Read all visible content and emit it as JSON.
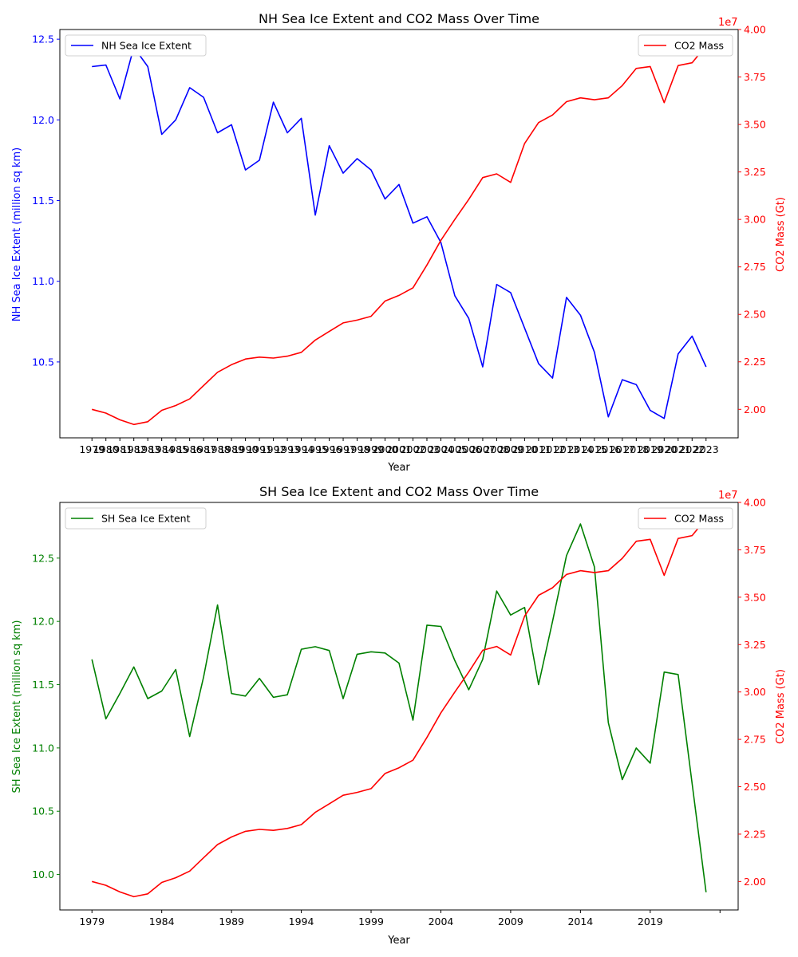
{
  "colors": {
    "nh": "#0000ff",
    "sh": "#008000",
    "co2": "#ff0000",
    "axis": "#000000",
    "background": "#ffffff"
  },
  "chart_data": [
    {
      "type": "line",
      "title": "NH Sea Ice Extent and CO2 Mass Over Time",
      "xlabel": "Year",
      "ylabel_left": "NH Sea Ice Extent (million sq km)",
      "ylabel_right": "CO2 Mass (Gt)",
      "right_offset_label": "1e7",
      "x": [
        1979,
        1980,
        1981,
        1982,
        1983,
        1984,
        1985,
        1986,
        1987,
        1988,
        1989,
        1990,
        1991,
        1992,
        1993,
        1994,
        1995,
        1996,
        1997,
        1998,
        1999,
        2000,
        2001,
        2002,
        2003,
        2004,
        2005,
        2006,
        2007,
        2008,
        2009,
        2010,
        2011,
        2012,
        2013,
        2014,
        2015,
        2016,
        2017,
        2018,
        2019,
        2020,
        2021,
        2022,
        2023
      ],
      "x_tick_labels": [
        "1979",
        "1980",
        "1981",
        "1982",
        "1983",
        "1984",
        "1985",
        "1986",
        "1987",
        "1988",
        "1989",
        "1990",
        "1991",
        "1992",
        "1993",
        "1994",
        "1995",
        "1996",
        "1997",
        "1998",
        "1999",
        "2000",
        "2001",
        "2002",
        "2003",
        "2004",
        "2005",
        "2006",
        "2007",
        "2008",
        "2009",
        "2010",
        "2011",
        "2012",
        "2013",
        "2014",
        "2015",
        "2016",
        "2017",
        "2018",
        "2019",
        "2020",
        "2021",
        "2022",
        "2023"
      ],
      "xlim": [
        1976.7,
        2025.3
      ],
      "ylim_left": [
        10.03,
        12.56
      ],
      "ylim_right": [
        18500000,
        40000000
      ],
      "y_ticks_left": [
        "10.5",
        "11.0",
        "11.5",
        "12.0",
        "12.5"
      ],
      "y_ticks_right": [
        "2.00",
        "2.25",
        "2.50",
        "2.75",
        "3.00",
        "3.25",
        "3.50",
        "3.75",
        "4.00"
      ],
      "grid": false,
      "legend_left": "top-left",
      "legend_right": "top-right",
      "series_left": {
        "name": "NH Sea Ice Extent",
        "axis": "left",
        "values": [
          12.33,
          12.34,
          12.13,
          12.45,
          12.33,
          11.91,
          12.0,
          12.2,
          12.14,
          11.92,
          11.97,
          11.69,
          11.75,
          12.11,
          11.92,
          12.01,
          11.41,
          11.84,
          11.67,
          11.76,
          11.69,
          11.51,
          11.6,
          11.36,
          11.4,
          11.24,
          10.91,
          10.77,
          10.47,
          10.98,
          10.93,
          10.71,
          10.49,
          10.4,
          10.9,
          10.79,
          10.56,
          10.16,
          10.39,
          10.36,
          10.2,
          10.15,
          10.55,
          10.66,
          10.47
        ]
      },
      "series_right": {
        "name": "CO2 Mass",
        "axis": "right",
        "values": [
          20000000,
          19800000,
          19450000,
          19200000,
          19350000,
          19950000,
          20200000,
          20550000,
          21250000,
          21950000,
          22350000,
          22650000,
          22750000,
          22700000,
          22800000,
          23000000,
          23650000,
          24100000,
          24550000,
          24700000,
          24900000,
          25700000,
          26000000,
          26400000,
          27600000,
          28900000,
          30000000,
          31050000,
          32200000,
          32400000,
          31950000,
          34000000,
          35100000,
          35500000,
          36200000,
          36400000,
          36300000,
          36400000,
          37050000,
          37950000,
          38050000,
          36150000,
          38100000,
          38250000,
          39150000
        ]
      }
    },
    {
      "type": "line",
      "title": "SH Sea Ice Extent and CO2 Mass Over Time",
      "xlabel": "Year",
      "ylabel_left": "SH Sea Ice Extent (million sq km)",
      "ylabel_right": "CO2 Mass (Gt)",
      "right_offset_label": "1e7",
      "x": [
        1979,
        1980,
        1981,
        1982,
        1983,
        1984,
        1985,
        1986,
        1987,
        1988,
        1989,
        1990,
        1991,
        1992,
        1993,
        1994,
        1995,
        1996,
        1997,
        1998,
        1999,
        2000,
        2001,
        2002,
        2003,
        2004,
        2005,
        2006,
        2007,
        2008,
        2009,
        2010,
        2011,
        2012,
        2013,
        2014,
        2015,
        2016,
        2017,
        2018,
        2019,
        2020,
        2021,
        2022,
        2023
      ],
      "x_tick_labels": [
        "1979",
        "1984",
        "1989",
        "1994",
        "1999",
        "2004",
        "2009",
        "2014",
        "2019",
        ""
      ],
      "x_tick_values": [
        1979,
        1984,
        1989,
        1994,
        1999,
        2004,
        2009,
        2014,
        2019,
        2024
      ],
      "xlim": [
        1976.7,
        2025.3
      ],
      "ylim_left": [
        9.72,
        12.94
      ],
      "ylim_right": [
        18500000,
        40000000
      ],
      "y_ticks_left": [
        "10.0",
        "10.5",
        "11.0",
        "11.5",
        "12.0",
        "12.5"
      ],
      "y_ticks_right": [
        "2.00",
        "2.25",
        "2.50",
        "2.75",
        "3.00",
        "3.25",
        "3.50",
        "3.75",
        "4.00"
      ],
      "grid": false,
      "legend_left": "top-left",
      "legend_right": "top-right",
      "series_left": {
        "name": "SH Sea Ice Extent",
        "axis": "left",
        "values": [
          11.7,
          11.23,
          11.43,
          11.64,
          11.39,
          11.45,
          11.62,
          11.09,
          11.56,
          12.13,
          11.43,
          11.41,
          11.55,
          11.4,
          11.42,
          11.78,
          11.8,
          11.77,
          11.39,
          11.74,
          11.76,
          11.75,
          11.67,
          11.22,
          11.97,
          11.96,
          11.69,
          11.46,
          11.7,
          12.24,
          12.05,
          12.11,
          11.5,
          12.0,
          12.52,
          12.77,
          12.43,
          11.2,
          10.75,
          11.0,
          10.88,
          11.6,
          11.58,
          10.72,
          9.86
        ]
      },
      "series_right": {
        "name": "CO2 Mass",
        "axis": "right",
        "values": [
          20000000,
          19800000,
          19450000,
          19200000,
          19350000,
          19950000,
          20200000,
          20550000,
          21250000,
          21950000,
          22350000,
          22650000,
          22750000,
          22700000,
          22800000,
          23000000,
          23650000,
          24100000,
          24550000,
          24700000,
          24900000,
          25700000,
          26000000,
          26400000,
          27600000,
          28900000,
          30000000,
          31050000,
          32200000,
          32400000,
          31950000,
          34000000,
          35100000,
          35500000,
          36200000,
          36400000,
          36300000,
          36400000,
          37050000,
          37950000,
          38050000,
          36150000,
          38100000,
          38250000,
          39150000
        ]
      }
    }
  ]
}
